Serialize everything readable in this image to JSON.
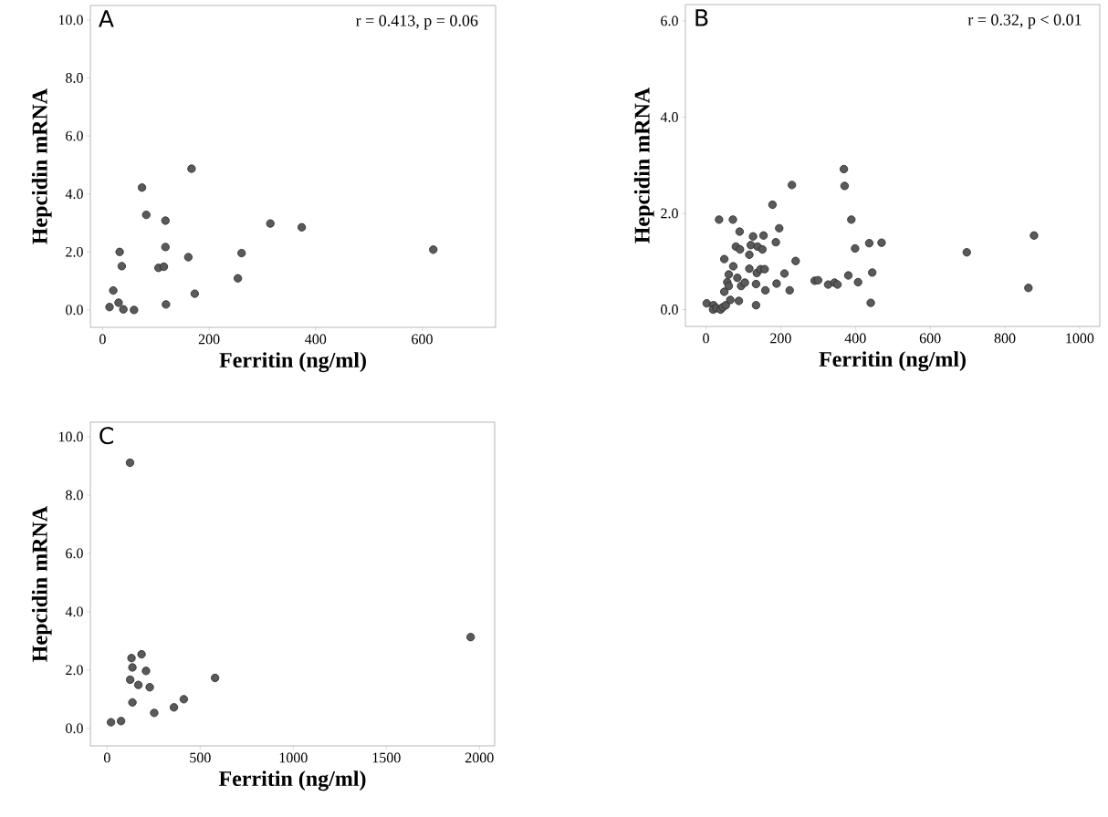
{
  "chart_data": [
    {
      "type": "scatter",
      "title": "A",
      "xlabel": "Ferritin (ng/ml)",
      "ylabel": "Hepcidin mRNA",
      "annotations": [
        "r = 0.413, p = 0.06"
      ],
      "color": "#5a5a5a",
      "x": [
        13,
        20,
        30,
        39,
        59,
        32,
        36,
        74,
        82,
        118,
        118,
        105,
        115,
        119,
        161,
        167,
        173,
        254,
        261,
        315,
        374,
        621
      ],
      "values": [
        0.1,
        0.67,
        0.25,
        0.02,
        0.0,
        2.0,
        1.51,
        4.22,
        3.28,
        3.08,
        2.17,
        1.45,
        1.49,
        0.19,
        1.82,
        4.87,
        0.56,
        1.09,
        1.96,
        2.98,
        2.85,
        2.08
      ],
      "xlim": [
        -23,
        738
      ],
      "ylim": [
        -0.6,
        10.5
      ],
      "xticks": [
        0,
        200,
        400,
        600
      ],
      "yticks": [
        {
          "value": 0,
          "label": "0.0"
        },
        {
          "value": 2,
          "label": "2.0"
        },
        {
          "value": 4,
          "label": "4.0"
        },
        {
          "value": 6,
          "label": "6.0"
        },
        {
          "value": 8,
          "label": "8.0"
        },
        {
          "value": 10,
          "label": "10.0"
        }
      ]
    },
    {
      "type": "scatter",
      "title": "B",
      "xlabel": "Ferritin (ng/ml)",
      "ylabel": "Hepcidin mRNA",
      "annotations": [
        "r = 0.32, p < 0.01"
      ],
      "color": "#5a5a5a",
      "x": [
        2,
        20,
        19,
        28,
        39,
        45,
        53,
        65,
        88,
        134,
        49,
        57,
        61,
        61,
        73,
        49,
        35,
        72,
        90,
        80,
        91,
        84,
        94,
        104,
        116,
        116,
        120,
        126,
        138,
        151,
        154,
        136,
        146,
        157,
        134,
        159,
        178,
        196,
        187,
        189,
        210,
        224,
        230,
        240,
        291,
        300,
        327,
        344,
        352,
        369,
        371,
        381,
        389,
        399,
        407,
        437,
        441,
        445,
        470,
        698,
        863,
        878
      ],
      "values": [
        0.13,
        0.09,
        0.0,
        0.03,
        0.0,
        0.05,
        0.09,
        0.2,
        0.18,
        0.09,
        0.37,
        0.57,
        0.49,
        0.73,
        0.9,
        1.05,
        1.87,
        1.87,
        1.62,
        1.31,
        1.25,
        0.66,
        0.49,
        0.56,
        0.85,
        1.14,
        1.34,
        1.52,
        1.31,
        1.25,
        1.54,
        0.76,
        0.84,
        0.84,
        0.53,
        0.4,
        2.18,
        1.69,
        1.4,
        0.54,
        0.75,
        0.4,
        2.59,
        1.01,
        0.6,
        0.61,
        0.52,
        0.56,
        0.52,
        2.92,
        2.57,
        0.71,
        1.87,
        1.27,
        0.57,
        1.38,
        0.14,
        0.77,
        1.39,
        1.19,
        0.45,
        1.54
      ],
      "xlim": [
        -55,
        1054
      ],
      "ylim": [
        -0.35,
        6.34
      ],
      "xticks": [
        0,
        200,
        400,
        600,
        800,
        1000
      ],
      "yticks": [
        {
          "value": 0,
          "label": "0.0"
        },
        {
          "value": 2,
          "label": "2.0"
        },
        {
          "value": 4,
          "label": "4.0"
        },
        {
          "value": 6,
          "label": "6.0"
        }
      ]
    },
    {
      "type": "scatter",
      "title": "C",
      "xlabel": "Ferritin (ng/ml)",
      "ylabel": "Hepcidin mRNA",
      "color": "#5a5a5a",
      "x": [
        21,
        75,
        123,
        131,
        136,
        185,
        124,
        168,
        209,
        229,
        136,
        253,
        359,
        412,
        580,
        1953
      ],
      "values": [
        0.21,
        0.25,
        9.11,
        2.41,
        2.09,
        2.54,
        1.67,
        1.49,
        1.97,
        1.41,
        0.89,
        0.53,
        0.72,
        1.0,
        1.73,
        3.13
      ],
      "xlim": [
        -90,
        2082
      ],
      "ylim": [
        -0.6,
        10.5
      ],
      "xticks": [
        0,
        500,
        1000,
        1500,
        2000
      ],
      "yticks": [
        {
          "value": 0,
          "label": "0.0"
        },
        {
          "value": 2,
          "label": "2.0"
        },
        {
          "value": 4,
          "label": "4.0"
        },
        {
          "value": 6,
          "label": "6.0"
        },
        {
          "value": 8,
          "label": "8.0"
        },
        {
          "value": 10,
          "label": "10.0"
        }
      ]
    }
  ]
}
